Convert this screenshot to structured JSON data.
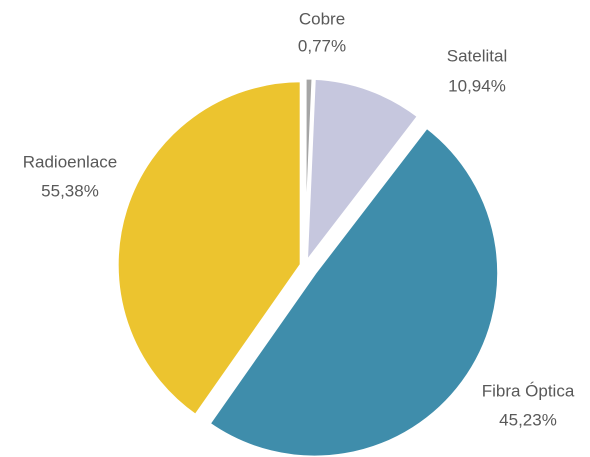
{
  "chart_data": {
    "type": "pie",
    "categories": [
      "Cobre",
      "Satelital",
      "Radioenlace",
      "Fibra Óptica"
    ],
    "values": [
      0.77,
      10.94,
      55.38,
      45.23
    ],
    "value_labels": [
      "0,77%",
      "10,94%",
      "55,38%",
      "45,23%"
    ],
    "colors": [
      "#a5a5a5",
      "#c6c7de",
      "#3f8dab",
      "#ecc42f"
    ]
  }
}
